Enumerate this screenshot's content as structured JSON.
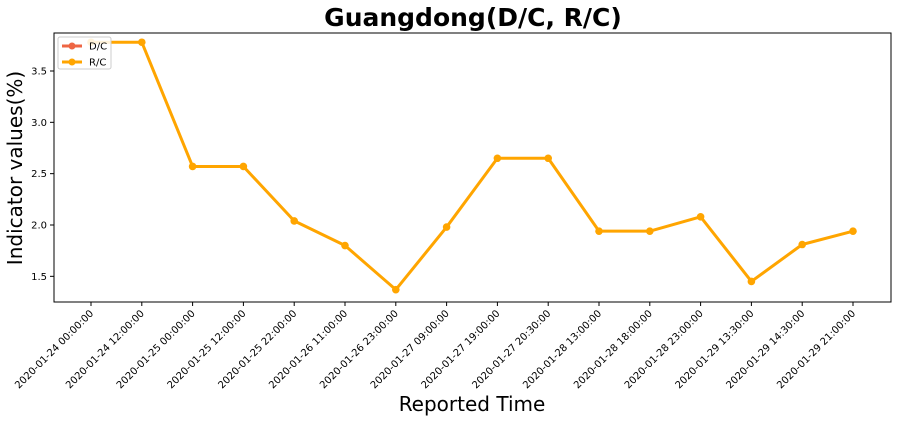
{
  "chart_data": {
    "type": "line",
    "title": "Guangdong(D/C, R/C)",
    "xlabel": "Reported Time",
    "ylabel": "Indicator values(%)",
    "categories": [
      "2020-01-24 00:00:00",
      "2020-01-24 12:00:00",
      "2020-01-25 00:00:00",
      "2020-01-25 12:00:00",
      "2020-01-25 22:00:00",
      "2020-01-26 11:00:00",
      "2020-01-26 23:00:00",
      "2020-01-27 09:00:00",
      "2020-01-27 19:00:00",
      "2020-01-27 20:30:00",
      "2020-01-28 13:00:00",
      "2020-01-28 18:00:00",
      "2020-01-28 23:00:00",
      "2020-01-29 13:30:00",
      "2020-01-29 14:30:00",
      "2020-01-29 21:00:00"
    ],
    "ylim": [
      1.25,
      3.87
    ],
    "yticks": [
      1.5,
      2.0,
      2.5,
      3.0,
      3.5
    ],
    "ytick_labels": [
      "1.5",
      "2.0",
      "2.5",
      "3.0",
      "3.5"
    ],
    "series": [
      {
        "name": "D/C",
        "color": "#ee6644",
        "values": [
          null,
          null,
          null,
          null,
          null,
          null,
          null,
          null,
          null,
          null,
          null,
          null,
          null,
          null,
          null,
          null
        ]
      },
      {
        "name": "R/C",
        "color": "#ffa500",
        "values": [
          3.78,
          3.78,
          2.57,
          2.57,
          2.04,
          1.8,
          1.37,
          1.98,
          2.65,
          2.65,
          1.94,
          1.94,
          2.08,
          1.45,
          1.81,
          1.94
        ]
      }
    ],
    "legend_position": "top-left",
    "grid": false
  }
}
